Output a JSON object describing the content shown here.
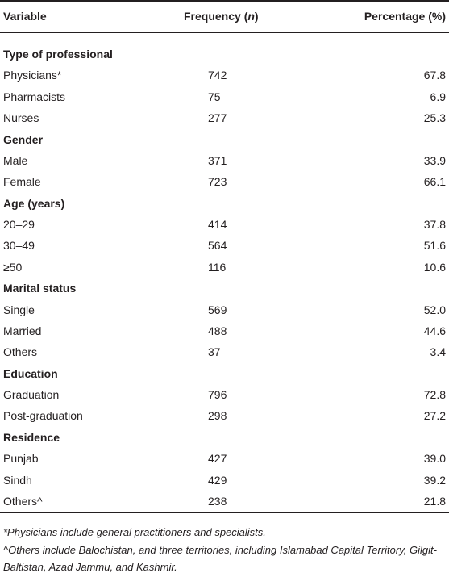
{
  "table": {
    "header": [
      "Variable",
      {
        "before": "Frequency (",
        "italic": "n",
        "after": ")"
      },
      "Percentage (%)"
    ],
    "sections": [
      {
        "title": "Type of professional",
        "rows": [
          [
            "Physicians*",
            "742",
            "67.8"
          ],
          [
            "Pharmacists",
            "75",
            "6.9"
          ],
          [
            "Nurses",
            "277",
            "25.3"
          ]
        ]
      },
      {
        "title": "Gender",
        "rows": [
          [
            "Male",
            "371",
            "33.9"
          ],
          [
            "Female",
            "723",
            "66.1"
          ]
        ]
      },
      {
        "title": "Age (years)",
        "rows": [
          [
            "20–29",
            "414",
            "37.8"
          ],
          [
            "30–49",
            "564",
            "51.6"
          ],
          [
            "≥50",
            "116",
            "10.6"
          ]
        ]
      },
      {
        "title": "Marital status",
        "rows": [
          [
            "Single",
            "569",
            "52.0"
          ],
          [
            "Married",
            "488",
            "44.6"
          ],
          [
            "Others",
            "37",
            "3.4"
          ]
        ]
      },
      {
        "title": "Education",
        "rows": [
          [
            "Graduation",
            "796",
            "72.8"
          ],
          [
            "Post-graduation",
            "298",
            "27.2"
          ]
        ]
      },
      {
        "title": "Residence",
        "rows": [
          [
            "Punjab",
            "427",
            "39.0"
          ],
          [
            "Sindh",
            "429",
            "39.2"
          ],
          [
            "Others^",
            "238",
            "21.8"
          ]
        ]
      }
    ],
    "footnotes": [
      "*Physicians include general practitioners and specialists.",
      "^Others include Balochistan, and three territories, including Islamabad Capital Territory, Gilgit-Baltistan, Azad Jammu, and Kashmir."
    ]
  }
}
